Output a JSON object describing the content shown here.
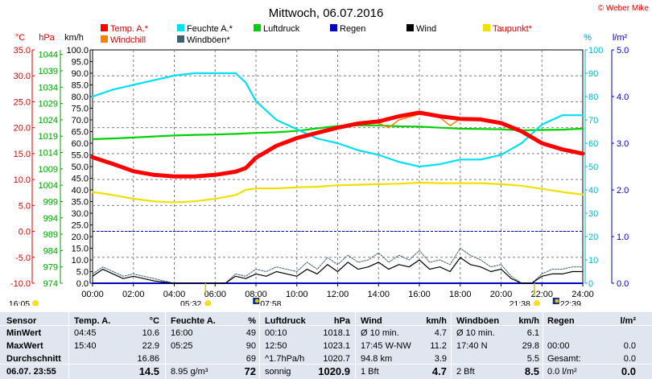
{
  "header": {
    "title": "Mittwoch, 06.07.2016",
    "copyright": "© Weber Mike"
  },
  "chart_data": {
    "type": "line",
    "title": "Mittwoch, 06.07.2016",
    "x_ticks": [
      "00:00",
      "02:00",
      "04:00",
      "06:00",
      "08:00",
      "10:00",
      "12:00",
      "14:00",
      "16:00",
      "18:00",
      "20:00",
      "22:00",
      "24:00"
    ],
    "x_range_hours": [
      0,
      24
    ],
    "axes": {
      "temp": {
        "unit": "°C",
        "range": [
          -10,
          35
        ],
        "ticks": [
          "35.0",
          "30.0",
          "25.0",
          "20.0",
          "15.0",
          "10.0",
          "5.0",
          "0.0",
          "-5.0",
          "-10.0"
        ],
        "color": "#e00000"
      },
      "pressure": {
        "unit": "hPa",
        "range": [
          974,
          1045.4
        ],
        "ticks": [
          "1044",
          "1039",
          "1034",
          "1029",
          "1024",
          "1019",
          "1014",
          "1009",
          "1004",
          "999",
          "994",
          "989",
          "984",
          "979",
          "974"
        ],
        "color": "#00a000"
      },
      "wind": {
        "unit": "km/h",
        "range": [
          0,
          100
        ],
        "ticks": [
          "100.0",
          "95.0",
          "90.0",
          "85.0",
          "80.0",
          "75.0",
          "70.0",
          "65.0",
          "60.0",
          "55.0",
          "50.0",
          "45.0",
          "40.0",
          "35.0",
          "30.0",
          "25.0",
          "20.0",
          "15.0",
          "10.0",
          "5.0",
          "0.0"
        ],
        "color": "#000000"
      },
      "humidity": {
        "unit": "%",
        "range": [
          0,
          100
        ],
        "ticks": [
          "100",
          "90",
          "80",
          "70",
          "60",
          "50",
          "40",
          "30",
          "20",
          "10",
          "0"
        ],
        "color": "#00c0d0"
      },
      "rain": {
        "unit": "l/m²",
        "range": [
          0,
          5
        ],
        "ticks": [
          "5.0",
          "4.0",
          "3.0",
          "2.0",
          "1.0",
          "0.0"
        ],
        "color": "#0000c0"
      }
    },
    "legend": [
      {
        "name": "Temp. A.*",
        "color": "#ff0000"
      },
      {
        "name": "Feuchte A.*",
        "color": "#00e0f0"
      },
      {
        "name": "Luftdruck",
        "color": "#00d000"
      },
      {
        "name": "Regen",
        "color": "#0000c0"
      },
      {
        "name": "Wind",
        "color": "#000000"
      },
      {
        "name": "Taupunkt*",
        "color": "#f0e000"
      },
      {
        "name": "Windchill",
        "color": "#ff8000"
      },
      {
        "name": "Windböen*",
        "color": "#406070"
      }
    ],
    "series": [
      {
        "name": "Temp. A.*",
        "axis": "temp",
        "color": "#ff0000",
        "x": [
          0,
          1,
          2,
          3,
          4,
          5,
          6,
          7,
          7.5,
          8,
          9,
          10,
          11,
          12,
          13,
          14,
          15,
          16,
          17,
          18,
          19,
          20,
          21,
          22,
          23,
          24
        ],
        "y": [
          14.3,
          13.0,
          11.6,
          10.9,
          10.6,
          10.6,
          10.9,
          11.5,
          12.2,
          14.2,
          16.5,
          18.0,
          19.0,
          20.0,
          20.8,
          21.2,
          22.2,
          22.9,
          22.2,
          21.7,
          21.6,
          20.9,
          19.3,
          17.0,
          15.8,
          15.0
        ]
      },
      {
        "name": "Windchill",
        "axis": "temp",
        "color": "#ff8000",
        "x": [
          0,
          1,
          2,
          3,
          4,
          5,
          6,
          7,
          7.5,
          8,
          9,
          10,
          11,
          12,
          13,
          14,
          14.5,
          15,
          16,
          17,
          17.5,
          18,
          19,
          20,
          21,
          22,
          23,
          24
        ],
        "y": [
          14.3,
          13.0,
          11.6,
          10.9,
          10.6,
          10.6,
          10.9,
          11.5,
          12.3,
          14.4,
          16.5,
          18.0,
          19.0,
          20.0,
          20.8,
          20.9,
          20.0,
          21.5,
          22.6,
          22.0,
          20.4,
          21.7,
          21.5,
          20.8,
          19.3,
          17.0,
          15.8,
          15.0
        ]
      },
      {
        "name": "Feuchte A.*",
        "axis": "humidity",
        "color": "#00e0f0",
        "x": [
          0,
          1,
          2,
          3,
          4,
          5,
          6,
          7,
          7.5,
          8,
          9,
          10,
          11,
          12,
          13,
          14,
          15,
          16,
          17,
          18,
          19,
          20,
          21,
          22,
          23,
          24
        ],
        "y": [
          80,
          83,
          85,
          87,
          89,
          90,
          90,
          90,
          86,
          78,
          70,
          66,
          62,
          60,
          57,
          55,
          52,
          50,
          51,
          53,
          53,
          55,
          60,
          68,
          72,
          72
        ]
      },
      {
        "name": "Luftdruck",
        "axis": "pressure",
        "color": "#00d000",
        "x": [
          0,
          1,
          2,
          3,
          4,
          5,
          6,
          7,
          8,
          9,
          10,
          11,
          12,
          13,
          14,
          15,
          16,
          17,
          18,
          19,
          20,
          21,
          22,
          23,
          24
        ],
        "y": [
          1018.1,
          1018.3,
          1018.6,
          1018.9,
          1019.2,
          1019.4,
          1019.5,
          1019.7,
          1020.0,
          1020.2,
          1020.6,
          1021.4,
          1022.1,
          1022.3,
          1022.3,
          1022.0,
          1021.9,
          1021.6,
          1021.3,
          1021.2,
          1021.1,
          1020.8,
          1020.9,
          1021.0,
          1021.3
        ]
      },
      {
        "name": "Taupunkt*",
        "axis": "temp",
        "color": "#f0e000",
        "x": [
          0,
          1,
          2,
          3,
          4,
          5,
          6,
          7,
          7.5,
          8,
          9,
          10,
          11,
          12,
          13,
          14,
          15,
          16,
          17,
          18,
          19,
          20,
          21,
          22,
          23,
          24
        ],
        "y": [
          7.6,
          7.0,
          6.3,
          5.8,
          5.6,
          5.8,
          6.3,
          7.0,
          8.0,
          8.3,
          8.3,
          8.5,
          8.6,
          8.9,
          9.0,
          9.1,
          9.2,
          9.4,
          9.3,
          9.3,
          9.3,
          9.1,
          8.8,
          8.2,
          7.6,
          7.1
        ]
      },
      {
        "name": "Wind",
        "axis": "wind",
        "color": "#000000",
        "x": [
          0,
          0.5,
          1,
          1.5,
          2,
          2.5,
          3,
          4,
          5,
          6,
          6.5,
          7,
          7.5,
          8,
          8.5,
          9,
          9.5,
          10,
          10.5,
          11,
          11.5,
          12,
          12.5,
          13,
          13.5,
          14,
          14.5,
          15,
          15.5,
          16,
          16.5,
          17,
          17.5,
          18,
          18.5,
          19,
          19.5,
          20,
          20.5,
          21,
          21.5,
          22,
          22.5,
          23,
          23.5,
          24
        ],
        "y": [
          3,
          6,
          4,
          2,
          3,
          2,
          1,
          0,
          0,
          0,
          0,
          3,
          2,
          4,
          3,
          5,
          4,
          3,
          6,
          4,
          8,
          5,
          9,
          6,
          7,
          9,
          6,
          8,
          7,
          10,
          6,
          7,
          5,
          11,
          8,
          7,
          5,
          6,
          2,
          0,
          0,
          3,
          4,
          4,
          5,
          5
        ]
      },
      {
        "name": "Windböen*",
        "axis": "wind",
        "color": "#406070",
        "x": [
          0,
          0.5,
          1,
          1.5,
          2,
          2.5,
          3,
          4,
          5,
          6,
          6.5,
          7,
          7.5,
          8,
          8.5,
          9,
          9.5,
          10,
          10.5,
          11,
          11.5,
          12,
          12.5,
          13,
          13.5,
          14,
          14.5,
          15,
          15.5,
          16,
          16.5,
          17,
          17.5,
          18,
          18.5,
          19,
          19.5,
          20,
          20.5,
          21,
          21.5,
          22,
          22.5,
          23,
          23.5,
          24
        ],
        "y": [
          4,
          7,
          5,
          3,
          4,
          3,
          2,
          0,
          0,
          0,
          0,
          4,
          3,
          6,
          5,
          7,
          6,
          5,
          9,
          6,
          11,
          8,
          12,
          9,
          10,
          13,
          9,
          12,
          10,
          14,
          9,
          10,
          8,
          15,
          12,
          10,
          7,
          8,
          3,
          0,
          0,
          4,
          6,
          6,
          7,
          7
        ]
      },
      {
        "name": "Regen",
        "axis": "rain",
        "color": "#0000c0",
        "x": [
          0,
          24
        ],
        "y": [
          0,
          0
        ]
      }
    ],
    "reference_line": {
      "axis": "temp",
      "value": 0,
      "color": "#0000c0"
    },
    "sun_events": [
      {
        "label": "16:05",
        "hour": -1,
        "type": "sun"
      },
      {
        "label": "05:32",
        "hour": 5.53,
        "type": "sun"
      },
      {
        "label": "07:58",
        "hour": 7.97,
        "type": "moon"
      },
      {
        "label": "21:38",
        "hour": 21.63,
        "type": "sun"
      },
      {
        "label": "22:39",
        "hour": 22.65,
        "type": "moon"
      }
    ]
  },
  "table": {
    "rows": [
      {
        "label": "Sensor",
        "cols": [
          "Temp. A.",
          "°C",
          "Feuchte A.",
          "%",
          "Luftdruck",
          "hPa",
          "Wind",
          "km/h",
          "Windböen",
          "km/h",
          "Regen",
          "l/m²"
        ]
      },
      {
        "label": "MinWert",
        "cols": [
          "04:45",
          "10.6",
          "16:00",
          "49",
          "00:10",
          "1018.1",
          "Ø 10 min.",
          "4.7",
          "Ø 10 min.",
          "6.1",
          "",
          ""
        ]
      },
      {
        "label": "MaxWert",
        "cols": [
          "15:40",
          "22.9",
          "05:25",
          "90",
          "12:50",
          "1023.1",
          "17:45 W-NW",
          "11.2",
          "17:40 N",
          "29.8",
          "00:00",
          "0.0"
        ]
      },
      {
        "label": "Durchschnitt",
        "cols": [
          "",
          "16.86",
          "",
          "69",
          "^1.7hPa/h",
          "1020.7",
          "94.8 km",
          "3.9",
          "",
          "5.5",
          "Gesamt:",
          "0.0"
        ]
      },
      {
        "label": "06.07. 23:55",
        "cols": [
          "",
          "14.5",
          "8.95 g/m³",
          "72",
          "sonnig",
          "1020.9",
          "1 Bft",
          "4.7",
          "2 Bft",
          "8.5",
          "0.0 l/m²",
          "0.0"
        ]
      }
    ]
  }
}
